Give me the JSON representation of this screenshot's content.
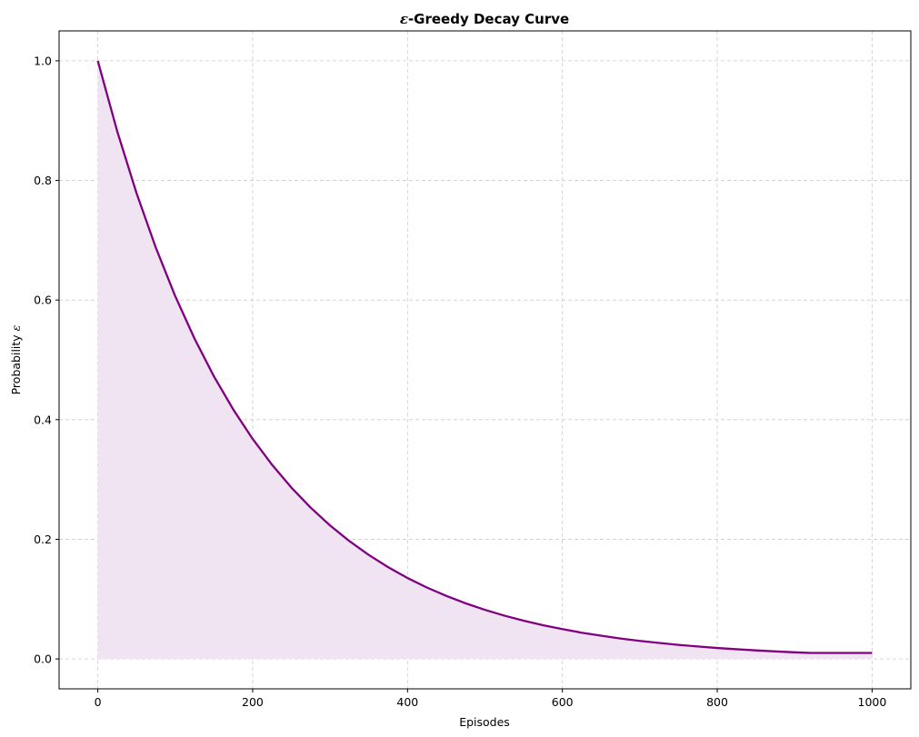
{
  "chart_data": {
    "type": "area",
    "title_symbol": "ε",
    "title_text": "-Greedy Decay Curve",
    "xlabel": "Episodes",
    "ylabel_text": "Probability ",
    "ylabel_symbol": "ε",
    "xlim": [
      -50,
      1050
    ],
    "ylim": [
      -0.05,
      1.05
    ],
    "xticks": [
      0,
      200,
      400,
      600,
      800,
      1000
    ],
    "xtick_labels": [
      "0",
      "200",
      "400",
      "600",
      "800",
      "1000"
    ],
    "yticks": [
      0.0,
      0.2,
      0.4,
      0.6,
      0.8,
      1.0
    ],
    "ytick_labels": [
      "0.0",
      "0.2",
      "0.4",
      "0.6",
      "0.8",
      "1.0"
    ],
    "grid": true,
    "line_color": "#800080",
    "fill_color": "#f0e4f2",
    "series": [
      {
        "x": [
          0,
          25,
          50,
          75,
          100,
          125,
          150,
          175,
          200,
          225,
          250,
          275,
          300,
          325,
          350,
          375,
          400,
          425,
          450,
          475,
          500,
          525,
          550,
          575,
          600,
          625,
          650,
          675,
          700,
          725,
          750,
          775,
          800,
          825,
          850,
          875,
          900,
          921,
          925,
          950,
          975,
          1000
        ],
        "y": [
          1.0,
          0.8825,
          0.7788,
          0.6873,
          0.6065,
          0.5353,
          0.4724,
          0.4169,
          0.3679,
          0.3247,
          0.2865,
          0.2528,
          0.2231,
          0.1969,
          0.1738,
          0.1534,
          0.1353,
          0.1194,
          0.1054,
          0.093,
          0.0821,
          0.0724,
          0.0639,
          0.0564,
          0.0498,
          0.0439,
          0.0388,
          0.0342,
          0.0302,
          0.0267,
          0.0235,
          0.0208,
          0.0183,
          0.0162,
          0.0143,
          0.0126,
          0.0111,
          0.01,
          0.01,
          0.01,
          0.01,
          0.01
        ]
      }
    ]
  }
}
